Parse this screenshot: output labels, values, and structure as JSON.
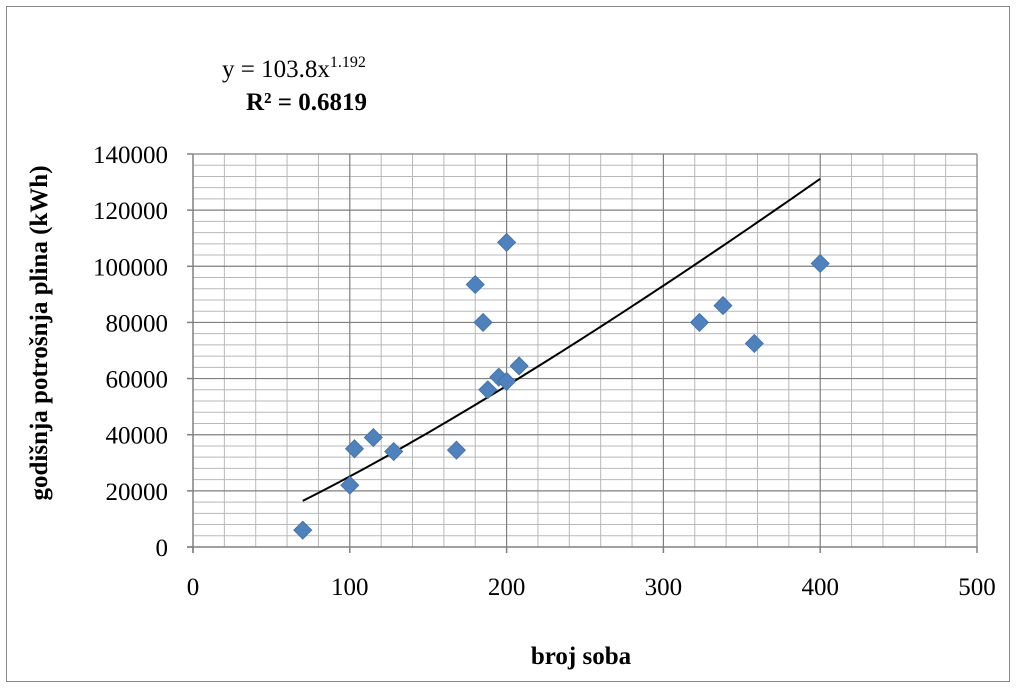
{
  "chart_data": {
    "type": "scatter",
    "title": "",
    "xlabel": "broj soba",
    "ylabel": "godišnja potrošnja plina (kWh)",
    "xlim": [
      0,
      500
    ],
    "ylim": [
      0,
      140000
    ],
    "x_ticks": [
      "0",
      "100",
      "200",
      "300",
      "400",
      "500"
    ],
    "y_ticks": [
      "0",
      "20000",
      "40000",
      "60000",
      "80000",
      "100000",
      "120000",
      "140000"
    ],
    "grid": {
      "major": true,
      "minor": true
    },
    "marker": {
      "shape": "diamond",
      "color": "#4F81BD"
    },
    "trendline": {
      "type": "power",
      "coefficient": 103.8,
      "exponent": 1.192,
      "x_range": [
        70,
        400
      ],
      "color": "#000000"
    },
    "equation": {
      "base": "y = 103.8x",
      "exponent": "1.192",
      "r2": "R² = 0.6819"
    },
    "points": [
      {
        "x": 70,
        "y": 6000
      },
      {
        "x": 100,
        "y": 22000
      },
      {
        "x": 103,
        "y": 35000
      },
      {
        "x": 115,
        "y": 39000
      },
      {
        "x": 128,
        "y": 34000
      },
      {
        "x": 168,
        "y": 34500
      },
      {
        "x": 180,
        "y": 93500
      },
      {
        "x": 185,
        "y": 80000
      },
      {
        "x": 188,
        "y": 56000
      },
      {
        "x": 195,
        "y": 60500
      },
      {
        "x": 200,
        "y": 59000
      },
      {
        "x": 200,
        "y": 108500
      },
      {
        "x": 208,
        "y": 64500
      },
      {
        "x": 323,
        "y": 80000
      },
      {
        "x": 338,
        "y": 86000
      },
      {
        "x": 358,
        "y": 72500
      },
      {
        "x": 400,
        "y": 101000
      }
    ]
  }
}
